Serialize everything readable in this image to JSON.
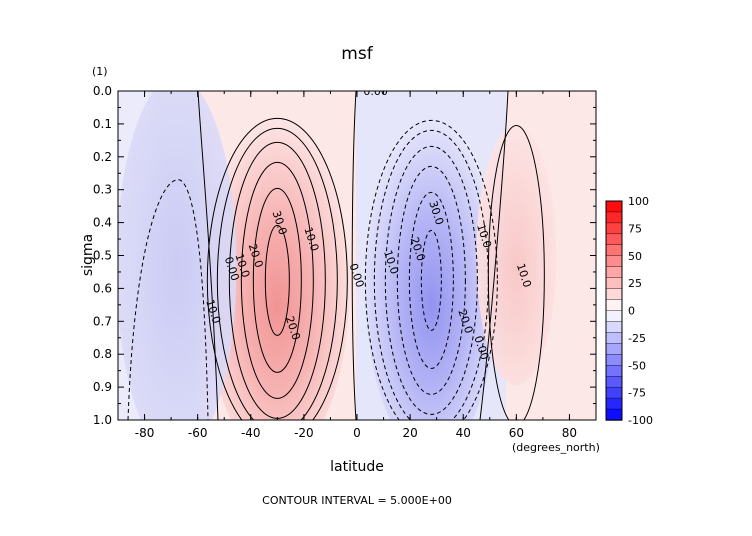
{
  "chart_data": {
    "type": "contour",
    "title": "msf",
    "xlabel": "latitude",
    "ylabel": "sigma",
    "x_unit": "(degrees_north)",
    "y_unit": "(1)",
    "xlim": [
      -90,
      90
    ],
    "ylim": [
      1.0,
      0.0
    ],
    "x_ticks": [
      -80,
      -60,
      -40,
      -20,
      0,
      20,
      40,
      60,
      80
    ],
    "x_tick_labels": [
      "-80",
      "-60",
      "-40",
      "-20",
      "0",
      "20",
      "40",
      "60",
      "80"
    ],
    "y_ticks": [
      0.0,
      0.1,
      0.2,
      0.3,
      0.4,
      0.5,
      0.6,
      0.7,
      0.8,
      0.9,
      1.0
    ],
    "y_tick_labels": [
      "0.0",
      "0.1",
      "0.2",
      "0.3",
      "0.4",
      "0.5",
      "0.6",
      "0.7",
      "0.8",
      "0.9",
      "1.0"
    ],
    "contour_interval_label": "CONTOUR INTERVAL = 5.000E+00",
    "contour_interval": 5,
    "colorbar": {
      "ticks": [
        100,
        75,
        50,
        25,
        0,
        -25,
        -50,
        -75,
        -100
      ],
      "tick_labels": [
        "100",
        "75",
        "50",
        "25",
        "0",
        "-25",
        "-50",
        "-75",
        "-100"
      ],
      "min": -100,
      "max": 100,
      "colors": [
        "#0000ff",
        "#ffffff",
        "#ff0000"
      ]
    },
    "cells": [
      {
        "lat": -30,
        "sigma": 0.6,
        "peak": 40,
        "sign": "positive",
        "color": "#f08a8a"
      },
      {
        "lat": 28,
        "sigma": 0.6,
        "peak": -40,
        "sign": "negative",
        "color": "#8a8af0"
      },
      {
        "lat": 60,
        "sigma": 0.5,
        "peak": 10,
        "sign": "positive",
        "color": "#f8c8c8"
      },
      {
        "lat": -68,
        "sigma": 0.55,
        "peak": -10,
        "sign": "negative",
        "color": "#c8c8f4"
      }
    ],
    "contour_labels": [
      {
        "text": "0.00",
        "lat": 7,
        "sigma": 0.0
      },
      {
        "text": "30.0",
        "lat": -29,
        "sigma": 0.4
      },
      {
        "text": "10.0",
        "lat": -17,
        "sigma": 0.45
      },
      {
        "text": "20.0",
        "lat": -38,
        "sigma": 0.5
      },
      {
        "text": "10.0",
        "lat": -43,
        "sigma": 0.53
      },
      {
        "text": "0.00",
        "lat": -47,
        "sigma": 0.54
      },
      {
        "text": "0.00",
        "lat": 0,
        "sigma": 0.56
      },
      {
        "text": "10.0",
        "lat": -54,
        "sigma": 0.67
      },
      {
        "text": "20.0",
        "lat": -24,
        "sigma": 0.72
      },
      {
        "text": "10.0",
        "lat": 13,
        "sigma": 0.52
      },
      {
        "text": "20.0",
        "lat": 23,
        "sigma": 0.48
      },
      {
        "text": "30.0",
        "lat": 30,
        "sigma": 0.37
      },
      {
        "text": "10.0",
        "lat": 48,
        "sigma": 0.44
      },
      {
        "text": "10.0",
        "lat": 63,
        "sigma": 0.56
      },
      {
        "text": "20.0",
        "lat": 41,
        "sigma": 0.7
      },
      {
        "text": "0.00",
        "lat": 47,
        "sigma": 0.78
      }
    ]
  }
}
